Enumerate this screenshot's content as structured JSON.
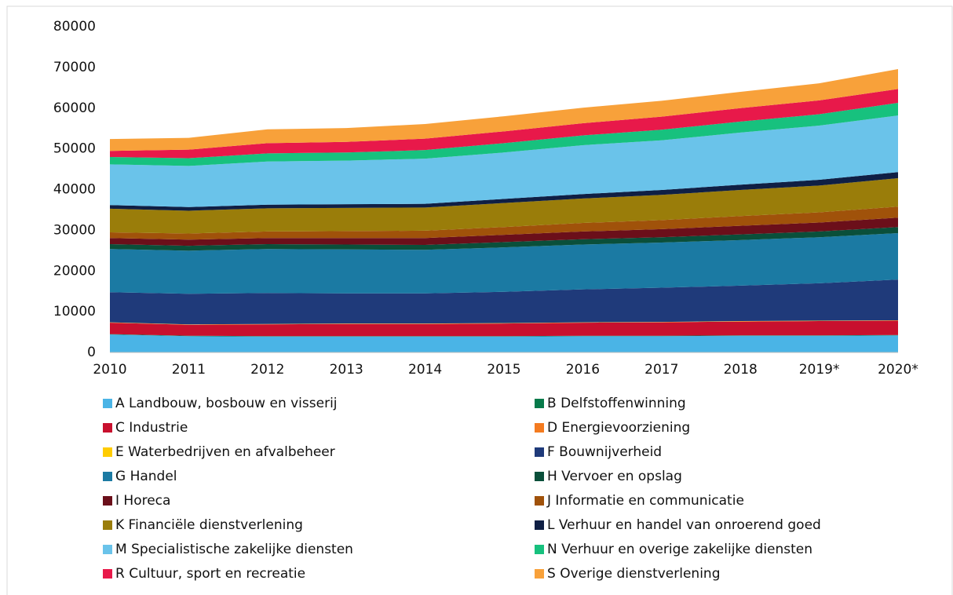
{
  "chart_data": {
    "type": "stacked_area",
    "categories": [
      "2010",
      "2011",
      "2012",
      "2013",
      "2014",
      "2015",
      "2016",
      "2017",
      "2018",
      "2019*",
      "2020*"
    ],
    "ylim": [
      0,
      80000
    ],
    "yticks": [
      0,
      10000,
      20000,
      30000,
      40000,
      50000,
      60000,
      70000,
      80000
    ],
    "legend": "bottom",
    "series": [
      {
        "name": "A Landbouw, bosbouw en visserij",
        "color": "#4ab4e6",
        "values": [
          4400,
          4000,
          3900,
          3900,
          3900,
          3900,
          4000,
          4000,
          4100,
          4100,
          4200
        ]
      },
      {
        "name": "B Delfstoffenwinning",
        "color": "#067a4a",
        "values": [
          100,
          100,
          100,
          100,
          100,
          100,
          100,
          100,
          100,
          100,
          100
        ]
      },
      {
        "name": "C Industrie",
        "color": "#c8102e",
        "values": [
          2800,
          2700,
          2900,
          3000,
          3000,
          3100,
          3200,
          3300,
          3400,
          3500,
          3500
        ]
      },
      {
        "name": "D Energievoorziening",
        "color": "#f47b20",
        "values": [
          50,
          50,
          50,
          50,
          50,
          50,
          50,
          50,
          50,
          50,
          50
        ]
      },
      {
        "name": "E Waterbedrijven en afvalbeheer",
        "color": "#ffcc00",
        "values": [
          50,
          50,
          50,
          50,
          50,
          50,
          50,
          50,
          50,
          50,
          50
        ]
      },
      {
        "name": "F Bouwnijverheid",
        "color": "#1f3a7a",
        "values": [
          7400,
          7500,
          7600,
          7400,
          7400,
          7700,
          8100,
          8400,
          8700,
          9200,
          10000
        ]
      },
      {
        "name": "G Handel",
        "color": "#1b7aa3",
        "values": [
          10600,
          10600,
          10800,
          10800,
          10700,
          10900,
          11000,
          11100,
          11200,
          11300,
          11400
        ]
      },
      {
        "name": "H Vervoer en opslag",
        "color": "#0a4f3a",
        "values": [
          1200,
          1200,
          1200,
          1200,
          1200,
          1300,
          1300,
          1300,
          1400,
          1400,
          1500
        ]
      },
      {
        "name": "I Horeca",
        "color": "#6b0f1a",
        "values": [
          1500,
          1500,
          1500,
          1600,
          1700,
          1800,
          1900,
          2000,
          2100,
          2200,
          2300
        ]
      },
      {
        "name": "J Informatie en communicatie",
        "color": "#a0520a",
        "values": [
          1400,
          1500,
          1600,
          1700,
          1800,
          1900,
          2100,
          2200,
          2400,
          2500,
          2700
        ]
      },
      {
        "name": "K Financiële dienstverlening",
        "color": "#9a7d0a",
        "values": [
          5800,
          5600,
          5700,
          5700,
          5700,
          5900,
          6000,
          6200,
          6400,
          6600,
          7000
        ]
      },
      {
        "name": "L Verhuur en handel van onroerend goed",
        "color": "#0f1f44",
        "values": [
          900,
          900,
          900,
          900,
          900,
          1000,
          1100,
          1200,
          1300,
          1400,
          1500
        ]
      },
      {
        "name": "M Specialistische zakelijke diensten",
        "color": "#6ac3ea",
        "values": [
          10000,
          10100,
          10600,
          10700,
          11100,
          11400,
          12000,
          12200,
          12800,
          13300,
          13900
        ]
      },
      {
        "name": "N Verhuur en overige zakelijke diensten",
        "color": "#17c17e",
        "values": [
          1800,
          1900,
          2000,
          2000,
          2100,
          2300,
          2400,
          2600,
          2700,
          2800,
          3100
        ]
      },
      {
        "name": "R Cultuur, sport en recreatie",
        "color": "#e8194a",
        "values": [
          1500,
          2100,
          2500,
          2600,
          2800,
          2900,
          3000,
          3200,
          3300,
          3400,
          3400
        ]
      },
      {
        "name": "S Overige dienstverlening",
        "color": "#f8a13a",
        "values": [
          2900,
          2900,
          3400,
          3400,
          3600,
          3700,
          3800,
          3900,
          4000,
          4200,
          4900
        ]
      }
    ]
  }
}
